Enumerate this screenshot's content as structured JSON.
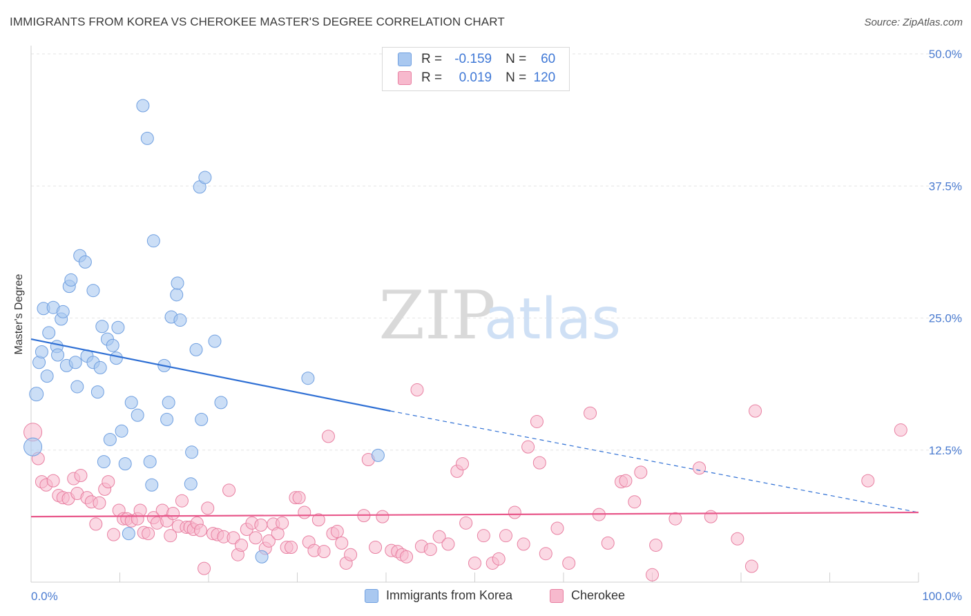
{
  "header": {
    "title": "IMMIGRANTS FROM KOREA VS CHEROKEE MASTER'S DEGREE CORRELATION CHART",
    "source": "Source: ZipAtlas.com"
  },
  "watermark": {
    "zip": "ZIP",
    "atlas": "atlas"
  },
  "legend": {
    "rows": [
      {
        "r_label": "R =",
        "r_value": "-0.159",
        "n_label": "N =",
        "n_value": "60"
      },
      {
        "r_label": "R =",
        "r_value": "0.019",
        "n_label": "N =",
        "n_value": "120"
      }
    ]
  },
  "bottom_legend": {
    "series1": "Immigrants from Korea",
    "series2": "Cherokee"
  },
  "colors": {
    "korea_fill": "#a9c8f0",
    "korea_stroke": "#6f9fe0",
    "korea_line": "#2e6fd4",
    "cherokee_fill": "#f7b9cd",
    "cherokee_stroke": "#e87fa1",
    "cherokee_line": "#e8578a",
    "tick_text": "#4a7bd0",
    "grid": "#e3e3e3"
  },
  "chart_data": {
    "type": "scatter",
    "title": "IMMIGRANTS FROM KOREA VS CHEROKEE MASTER'S DEGREE CORRELATION CHART",
    "xlabel": "",
    "ylabel": "Master's Degree",
    "xlim": [
      0,
      100
    ],
    "ylim": [
      0,
      50
    ],
    "x_tick_labels": [
      "0.0%",
      "100.0%"
    ],
    "y_ticks": [
      12.5,
      25.0,
      37.5,
      50.0
    ],
    "y_tick_labels": [
      "12.5%",
      "25.0%",
      "37.5%",
      "50.0%"
    ],
    "series": [
      {
        "name": "Immigrants from Korea",
        "r": -0.159,
        "n": 60,
        "trend": {
          "x0": 0,
          "y0": 23.0,
          "x1": 40.5,
          "y1": 16.2,
          "dash_x1": 100,
          "dash_y1": 6.6
        },
        "points": [
          [
            0.2,
            12.8,
            13
          ],
          [
            0.6,
            17.8,
            10
          ],
          [
            0.9,
            20.8,
            9
          ],
          [
            1.2,
            21.8,
            9
          ],
          [
            1.4,
            25.9,
            9
          ],
          [
            1.8,
            19.5,
            9
          ],
          [
            2.0,
            23.6,
            9
          ],
          [
            2.5,
            26.0,
            9
          ],
          [
            2.9,
            22.3,
            9
          ],
          [
            3.0,
            21.5,
            9
          ],
          [
            3.4,
            24.9,
            9
          ],
          [
            3.6,
            25.6,
            9
          ],
          [
            4.0,
            20.5,
            9
          ],
          [
            4.3,
            28.0,
            9
          ],
          [
            4.5,
            28.6,
            9
          ],
          [
            5.0,
            20.8,
            9
          ],
          [
            5.2,
            18.5,
            9
          ],
          [
            5.5,
            30.9,
            9
          ],
          [
            6.1,
            30.3,
            9
          ],
          [
            6.3,
            21.4,
            9
          ],
          [
            7.0,
            20.8,
            9
          ],
          [
            7.0,
            27.6,
            9
          ],
          [
            7.5,
            18.0,
            9
          ],
          [
            7.8,
            20.3,
            9
          ],
          [
            8.0,
            24.2,
            9
          ],
          [
            8.2,
            11.4,
            9
          ],
          [
            8.6,
            23.0,
            9
          ],
          [
            8.9,
            13.5,
            9
          ],
          [
            9.2,
            22.4,
            9
          ],
          [
            9.6,
            21.2,
            9
          ],
          [
            9.8,
            24.1,
            9
          ],
          [
            10.2,
            14.3,
            9
          ],
          [
            10.6,
            11.2,
            9
          ],
          [
            11.0,
            4.6,
            9
          ],
          [
            11.3,
            17.0,
            9
          ],
          [
            12.0,
            15.8,
            9
          ],
          [
            12.6,
            45.1,
            9
          ],
          [
            13.1,
            42.0,
            9
          ],
          [
            13.4,
            11.4,
            9
          ],
          [
            13.6,
            9.2,
            9
          ],
          [
            13.8,
            32.3,
            9
          ],
          [
            15.0,
            20.5,
            9
          ],
          [
            15.3,
            15.4,
            9
          ],
          [
            15.5,
            17.0,
            9
          ],
          [
            15.8,
            25.1,
            9
          ],
          [
            16.4,
            27.2,
            9
          ],
          [
            16.5,
            28.3,
            9
          ],
          [
            16.8,
            24.8,
            9
          ],
          [
            18.1,
            12.3,
            9
          ],
          [
            18.0,
            9.3,
            9
          ],
          [
            18.6,
            22.0,
            9
          ],
          [
            19.0,
            37.4,
            9
          ],
          [
            19.2,
            15.4,
            9
          ],
          [
            19.6,
            38.3,
            9
          ],
          [
            20.7,
            22.8,
            9
          ],
          [
            21.4,
            17.0,
            9
          ],
          [
            26.0,
            2.4,
            9
          ],
          [
            31.2,
            19.3,
            9
          ],
          [
            39.1,
            12.0,
            9
          ]
        ]
      },
      {
        "name": "Cherokee",
        "r": 0.019,
        "n": 120,
        "trend": {
          "x0": 0,
          "y0": 6.2,
          "x1": 100,
          "y1": 6.6
        },
        "points": [
          [
            0.2,
            14.2,
            13
          ],
          [
            0.8,
            11.7,
            9
          ],
          [
            1.2,
            9.5,
            9
          ],
          [
            1.7,
            9.2,
            9
          ],
          [
            2.5,
            9.6,
            9
          ],
          [
            3.1,
            8.2,
            9
          ],
          [
            3.6,
            8.0,
            9
          ],
          [
            4.2,
            7.9,
            9
          ],
          [
            4.8,
            9.8,
            9
          ],
          [
            5.2,
            8.4,
            9
          ],
          [
            5.6,
            10.1,
            9
          ],
          [
            6.3,
            8.0,
            9
          ],
          [
            6.8,
            7.6,
            9
          ],
          [
            7.3,
            5.5,
            9
          ],
          [
            7.7,
            7.5,
            9
          ],
          [
            8.3,
            8.8,
            9
          ],
          [
            8.7,
            9.5,
            9
          ],
          [
            9.3,
            4.5,
            9
          ],
          [
            9.9,
            6.8,
            9
          ],
          [
            10.4,
            6.0,
            9
          ],
          [
            10.8,
            6.0,
            9
          ],
          [
            11.3,
            5.8,
            9
          ],
          [
            12.0,
            6.0,
            9
          ],
          [
            12.3,
            6.8,
            9
          ],
          [
            12.7,
            4.7,
            9
          ],
          [
            13.2,
            4.6,
            9
          ],
          [
            13.8,
            6.1,
            9
          ],
          [
            14.2,
            5.6,
            9
          ],
          [
            14.8,
            6.8,
            9
          ],
          [
            15.3,
            5.8,
            9
          ],
          [
            15.7,
            4.4,
            9
          ],
          [
            16.0,
            6.5,
            9
          ],
          [
            16.6,
            5.3,
            9
          ],
          [
            17.0,
            7.7,
            9
          ],
          [
            17.5,
            5.2,
            9
          ],
          [
            17.9,
            5.2,
            9
          ],
          [
            18.3,
            5.0,
            9
          ],
          [
            18.7,
            5.6,
            9
          ],
          [
            19.1,
            4.9,
            9
          ],
          [
            19.5,
            1.3,
            9
          ],
          [
            19.9,
            7.0,
            9
          ],
          [
            20.5,
            4.6,
            9
          ],
          [
            21.0,
            4.5,
            9
          ],
          [
            21.7,
            4.3,
            9
          ],
          [
            22.3,
            8.7,
            9
          ],
          [
            22.8,
            4.2,
            9
          ],
          [
            23.3,
            2.6,
            9
          ],
          [
            23.7,
            3.5,
            9
          ],
          [
            24.3,
            5.0,
            9
          ],
          [
            24.9,
            5.6,
            9
          ],
          [
            25.3,
            4.2,
            9
          ],
          [
            25.9,
            5.4,
            9
          ],
          [
            26.4,
            3.2,
            9
          ],
          [
            26.8,
            3.9,
            9
          ],
          [
            27.3,
            5.5,
            9
          ],
          [
            27.8,
            4.6,
            9
          ],
          [
            28.3,
            5.6,
            9
          ],
          [
            28.8,
            3.3,
            9
          ],
          [
            29.3,
            3.3,
            9
          ],
          [
            29.8,
            8.0,
            9
          ],
          [
            30.2,
            8.0,
            9
          ],
          [
            30.8,
            6.6,
            9
          ],
          [
            31.3,
            3.8,
            9
          ],
          [
            31.9,
            3.0,
            9
          ],
          [
            32.4,
            5.9,
            9
          ],
          [
            33.0,
            2.9,
            9
          ],
          [
            33.5,
            13.8,
            9
          ],
          [
            34.0,
            4.6,
            9
          ],
          [
            34.5,
            4.8,
            9
          ],
          [
            35.0,
            3.7,
            9
          ],
          [
            35.5,
            1.8,
            9
          ],
          [
            36.0,
            2.6,
            9
          ],
          [
            37.5,
            6.3,
            9
          ],
          [
            38.0,
            11.6,
            9
          ],
          [
            38.8,
            3.3,
            9
          ],
          [
            39.6,
            6.2,
            9
          ],
          [
            40.6,
            3.0,
            9
          ],
          [
            41.3,
            2.9,
            9
          ],
          [
            41.8,
            2.6,
            9
          ],
          [
            42.3,
            2.4,
            9
          ],
          [
            44.0,
            3.4,
            9
          ],
          [
            45.0,
            3.1,
            9
          ],
          [
            46.0,
            4.3,
            9
          ],
          [
            47.0,
            3.6,
            9
          ],
          [
            48.0,
            10.5,
            9
          ],
          [
            48.6,
            11.2,
            9
          ],
          [
            49.0,
            5.6,
            9
          ],
          [
            50.0,
            1.8,
            9
          ],
          [
            51.0,
            4.4,
            9
          ],
          [
            52.0,
            1.8,
            9
          ],
          [
            52.7,
            2.2,
            9
          ],
          [
            53.5,
            4.4,
            9
          ],
          [
            54.5,
            6.6,
            9
          ],
          [
            55.5,
            3.6,
            9
          ],
          [
            56.0,
            12.8,
            9
          ],
          [
            57.0,
            15.2,
            9
          ],
          [
            57.3,
            11.3,
            9
          ],
          [
            58.0,
            2.7,
            9
          ],
          [
            59.3,
            5.1,
            9
          ],
          [
            60.6,
            1.8,
            9
          ],
          [
            63.0,
            16.0,
            9
          ],
          [
            64.0,
            6.4,
            9
          ],
          [
            65.0,
            3.7,
            9
          ],
          [
            66.5,
            9.5,
            9
          ],
          [
            67.0,
            9.6,
            9
          ],
          [
            68.0,
            7.6,
            9
          ],
          [
            68.7,
            10.4,
            9
          ],
          [
            70.0,
            0.7,
            9
          ],
          [
            70.4,
            3.5,
            9
          ],
          [
            72.6,
            6.0,
            9
          ],
          [
            75.3,
            10.8,
            9
          ],
          [
            76.6,
            6.2,
            9
          ],
          [
            79.6,
            4.1,
            9
          ],
          [
            81.2,
            1.5,
            9
          ],
          [
            81.6,
            16.2,
            9
          ],
          [
            94.3,
            9.6,
            9
          ],
          [
            98.0,
            14.4,
            9
          ],
          [
            43.5,
            18.2,
            9
          ]
        ]
      }
    ],
    "legend_position": "top-center"
  }
}
